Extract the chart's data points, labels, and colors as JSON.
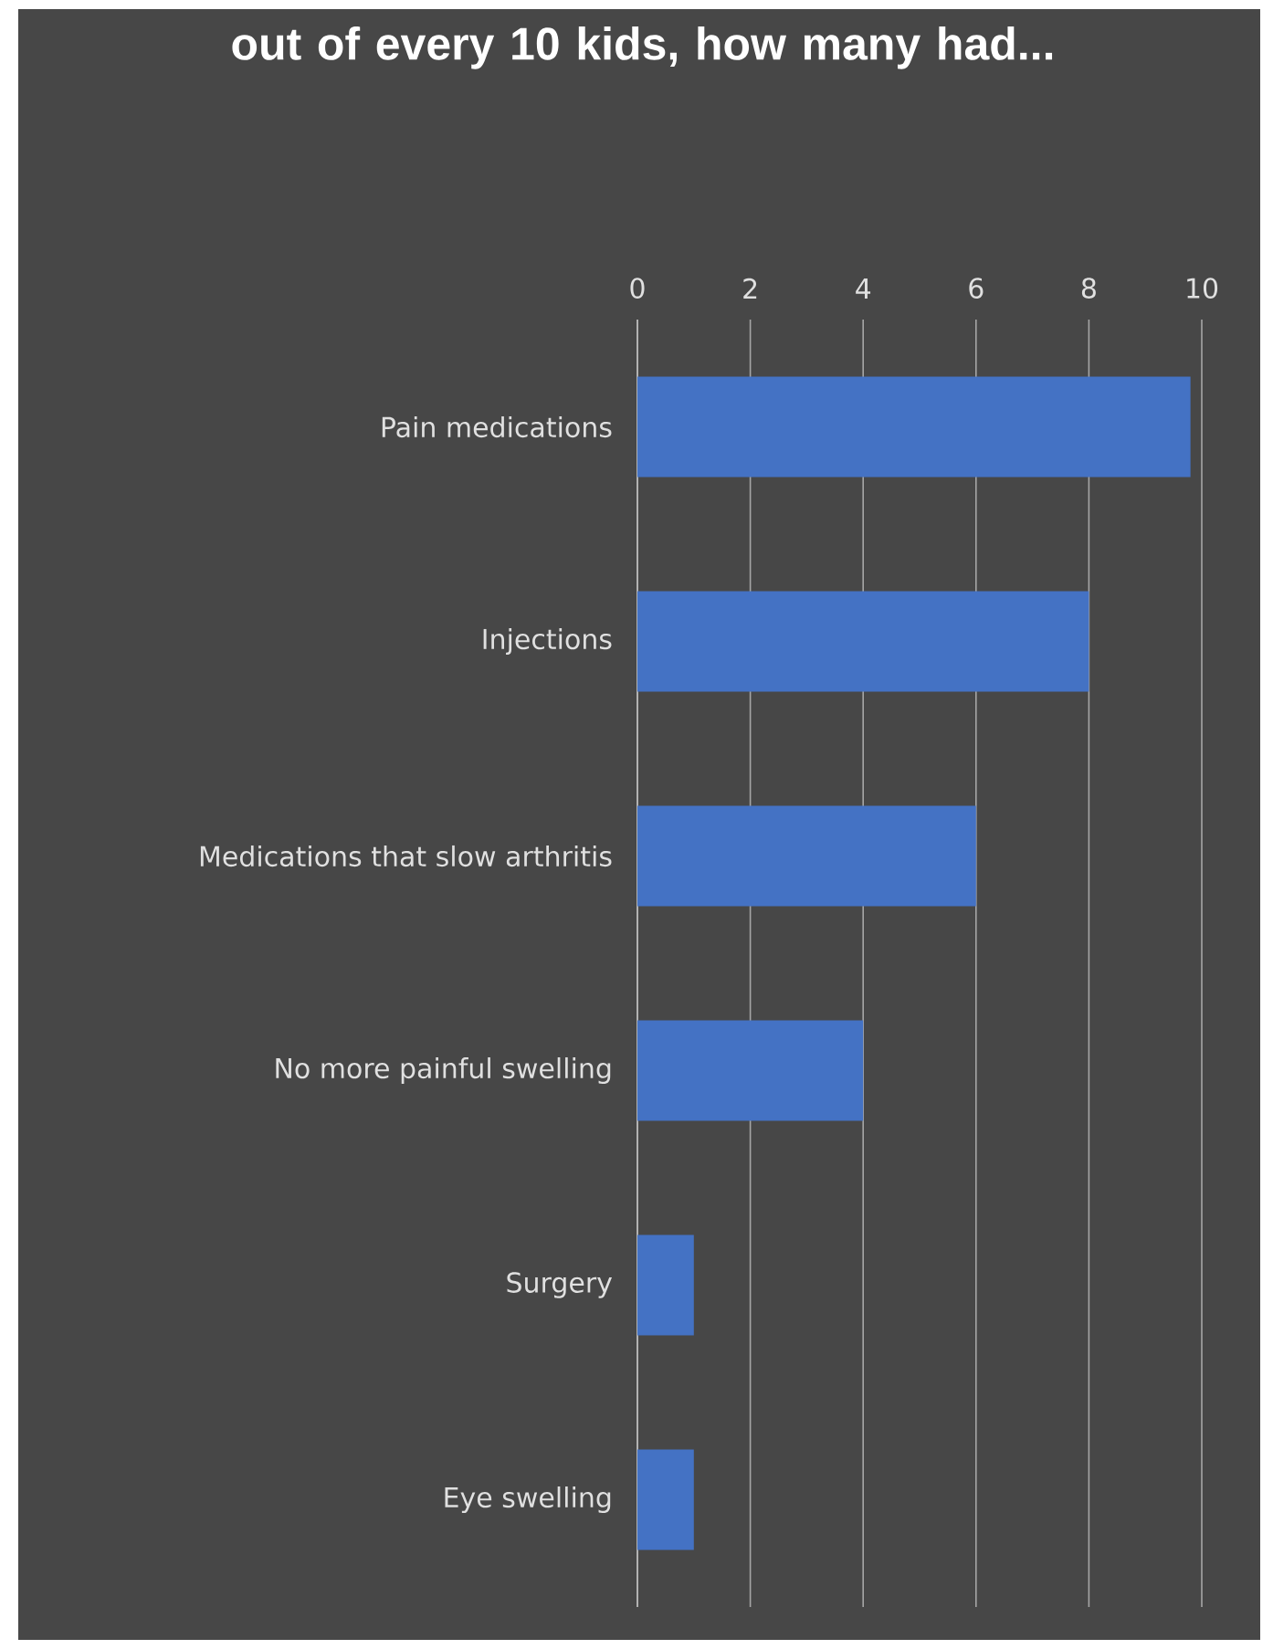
{
  "chart_data": {
    "type": "bar",
    "orientation": "horizontal",
    "title": "out of every 10 kids, how many had...",
    "categories": [
      "Pain medications",
      "Injections",
      "Medications that slow arthritis",
      "No more painful swelling",
      "Surgery",
      "Eye swelling"
    ],
    "values": [
      9.8,
      8,
      6,
      4,
      1,
      1
    ],
    "color": "#4472c4",
    "xlim": [
      0,
      10
    ],
    "xticks": [
      0,
      2,
      4,
      6,
      8,
      10
    ],
    "grid": "x"
  }
}
